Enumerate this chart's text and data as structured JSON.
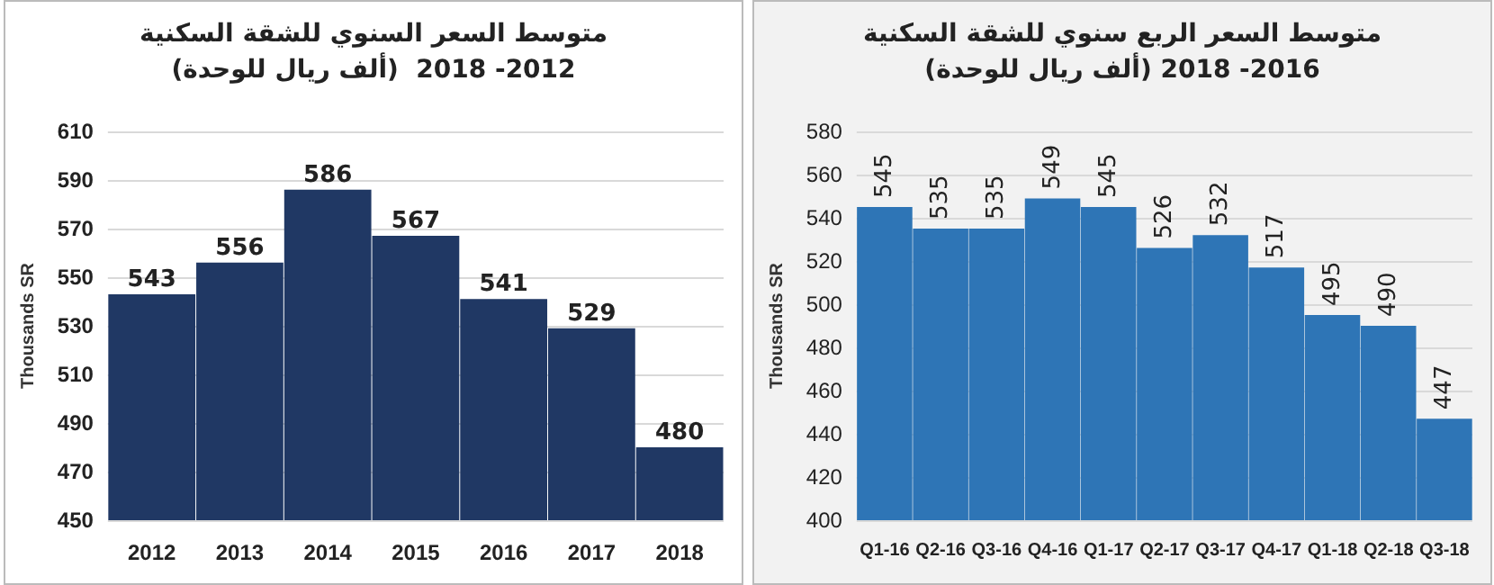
{
  "chart_data": [
    {
      "type": "bar",
      "title": "متوسط السعر السنوي للشقة السكنية",
      "subtitle": "(ألف ريال للوحدة)  2012- 2018",
      "ylabel": "Thousands SR",
      "categories": [
        "2012",
        "2013",
        "2014",
        "2015",
        "2016",
        "2017",
        "2018"
      ],
      "values": [
        543,
        556,
        586,
        567,
        541,
        529,
        480
      ],
      "color": "#203864",
      "ylim": [
        450,
        610
      ],
      "yticks": [
        450,
        470,
        490,
        510,
        530,
        550,
        570,
        590,
        610
      ],
      "grid": "y",
      "data_labels": true
    },
    {
      "type": "bar",
      "title": "متوسط السعر الربع سنوي للشقة السكنية",
      "subtitle": "(ألف ريال للوحدة) 2016- 2018",
      "ylabel": "Thousands SR",
      "categories": [
        "Q1-16",
        "Q2-16",
        "Q3-16",
        "Q4-16",
        "Q1-17",
        "Q2-17",
        "Q3-17",
        "Q4-17",
        "Q1-18",
        "Q2-18",
        "Q3-18"
      ],
      "values": [
        545,
        535,
        535,
        549,
        545,
        526,
        532,
        517,
        495,
        490,
        447
      ],
      "color": "#2e75b6",
      "ylim": [
        400,
        580
      ],
      "yticks": [
        400,
        420,
        440,
        460,
        480,
        500,
        520,
        540,
        560,
        580
      ],
      "grid": "y",
      "data_labels": true
    }
  ]
}
